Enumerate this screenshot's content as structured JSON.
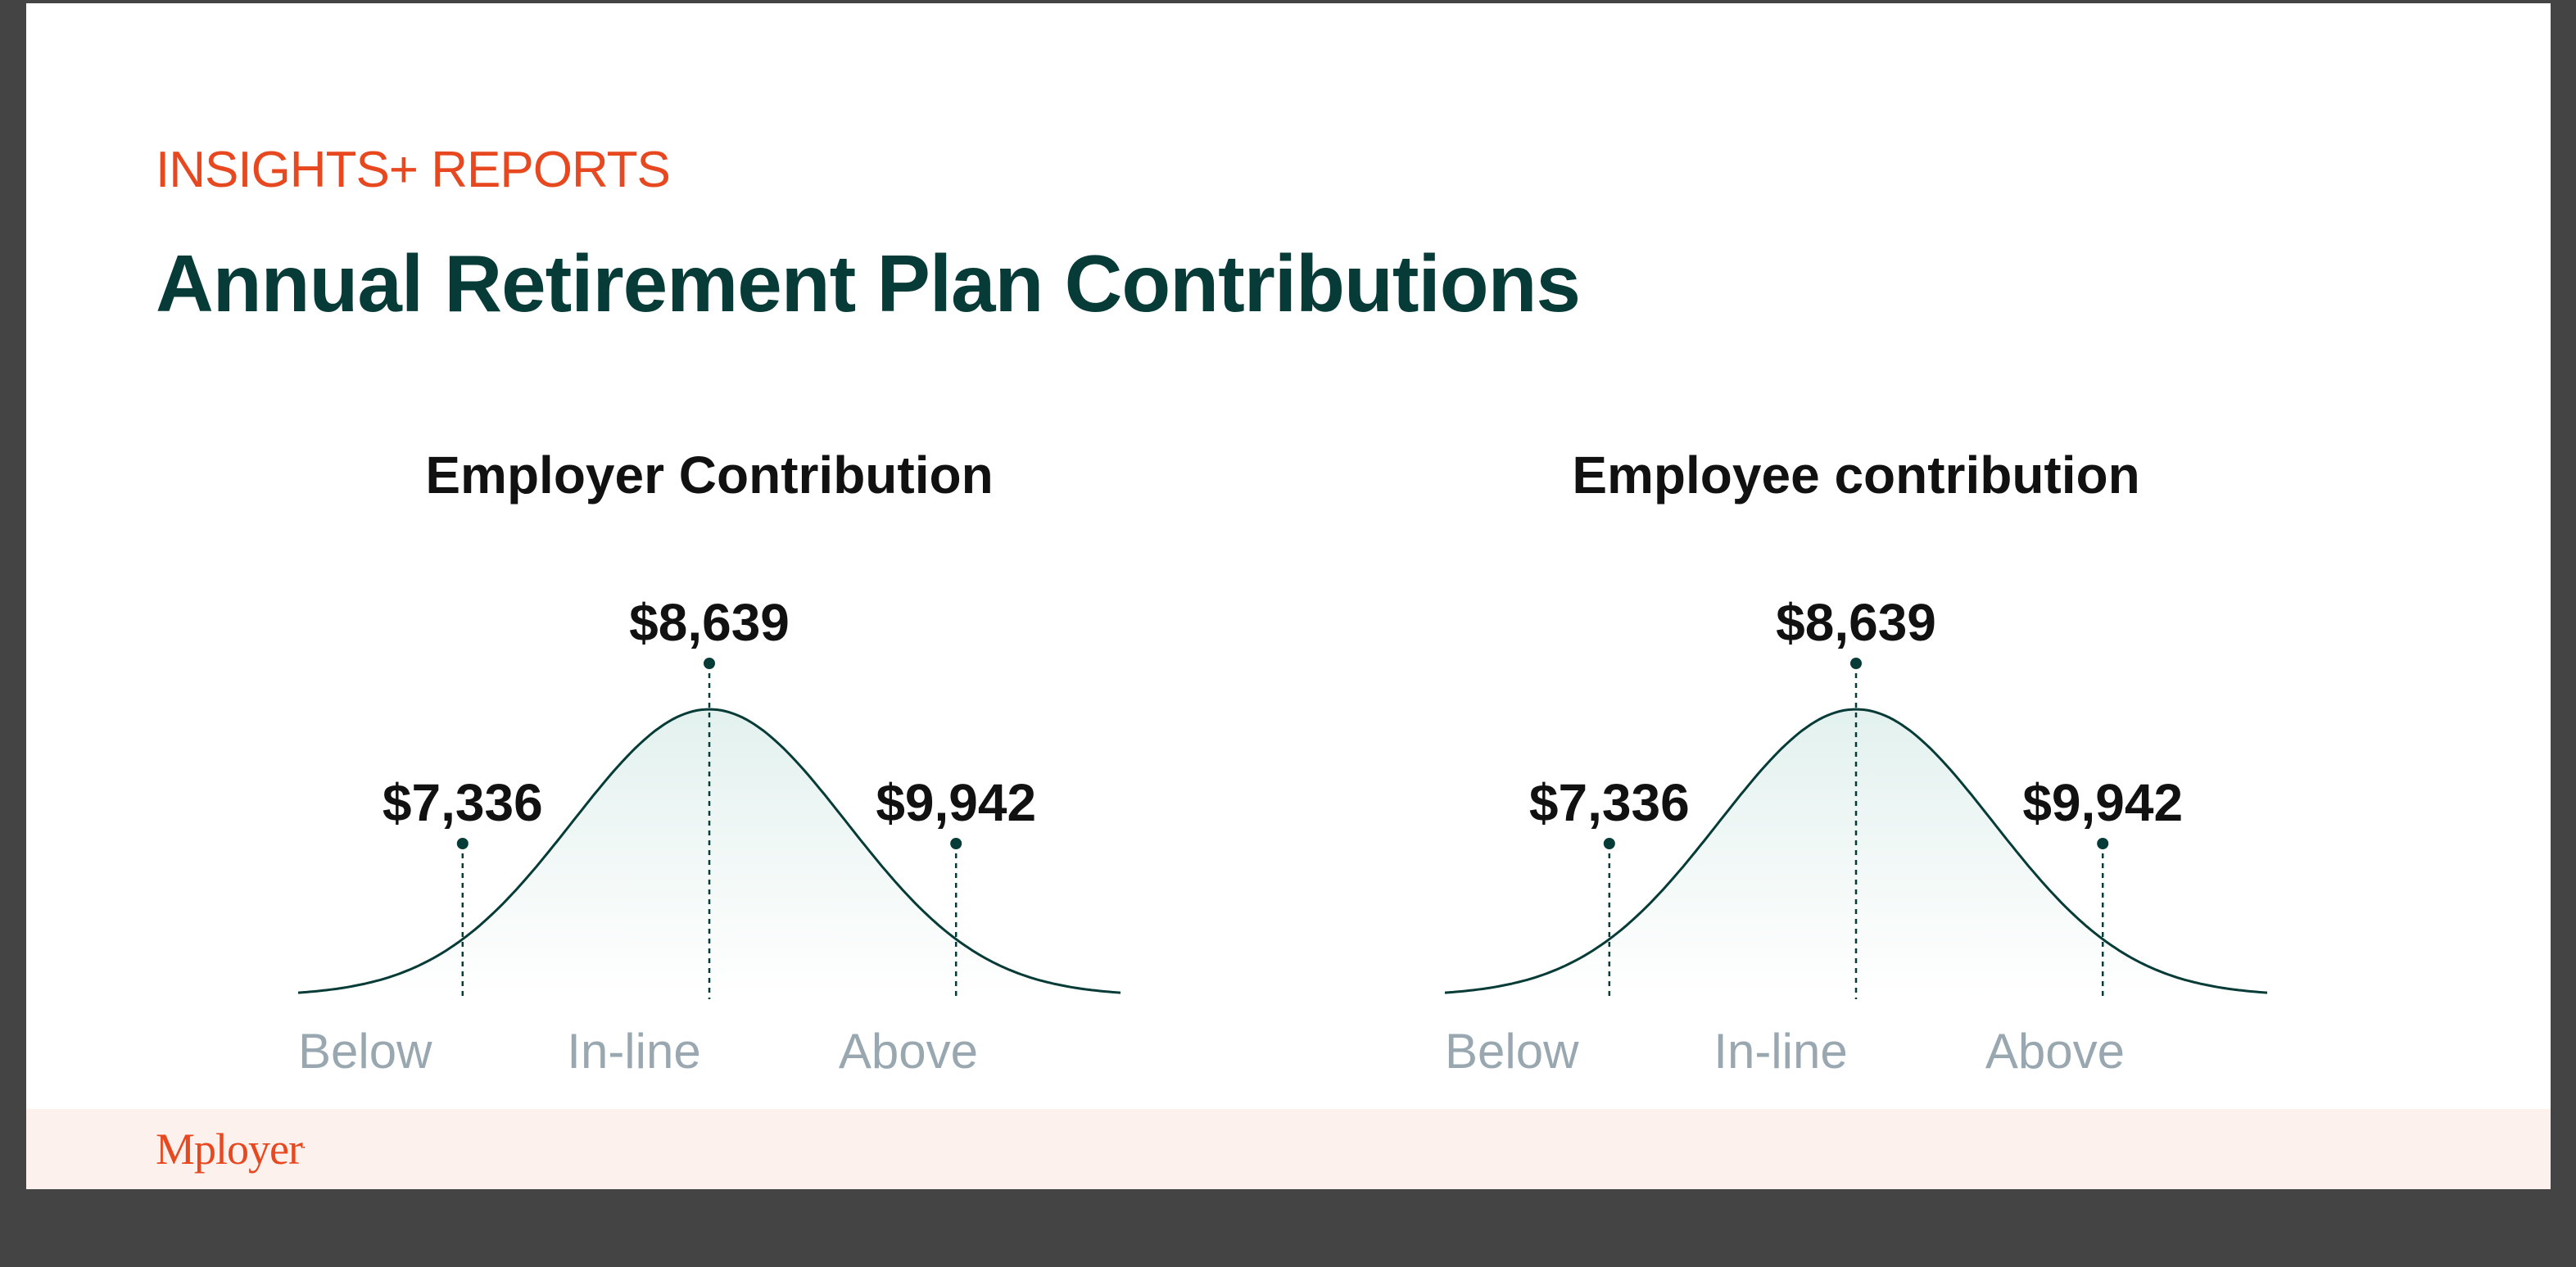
{
  "header": {
    "eyebrow": "INSIGHTS+ REPORTS",
    "title": "Annual Retirement Plan Contributions"
  },
  "footer": {
    "logo_text": "Mployer",
    "logo_mark": "."
  },
  "colors": {
    "eyebrow": "#e8481f",
    "title": "#063b37",
    "chart_title": "#111111",
    "value_label": "#111111",
    "curve": "#063b37",
    "fill_top": "#e3f1ee",
    "tick_label": "#99a8b0",
    "footer_bg": "#fdf1ed",
    "logo": "#e8481f"
  },
  "chart_data": [
    {
      "type": "area",
      "title": "Employer Contribution",
      "categories": [
        "Below",
        "In-line",
        "Above"
      ],
      "values": [
        7336,
        8639,
        9942
      ],
      "value_labels": [
        "$7,336",
        "$8,639",
        "$9,942"
      ]
    },
    {
      "type": "area",
      "title": "Employee contribution",
      "categories": [
        "Below",
        "In-line",
        "Above"
      ],
      "values": [
        7336,
        8639,
        9942
      ],
      "value_labels": [
        "$7,336",
        "$8,639",
        "$9,942"
      ]
    }
  ]
}
